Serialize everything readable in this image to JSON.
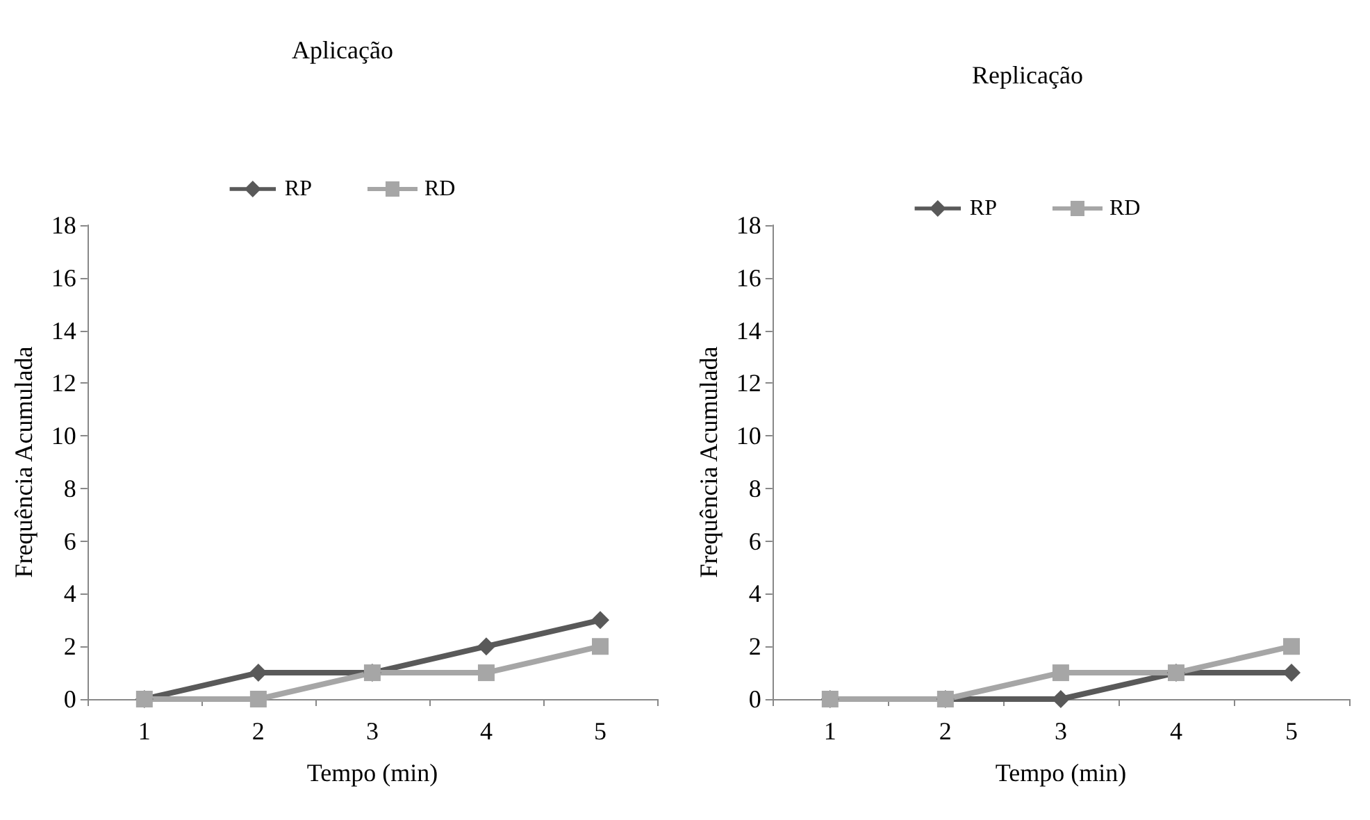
{
  "chart_data": [
    {
      "type": "line",
      "title": "Aplicação",
      "xlabel": "Tempo (min)",
      "ylabel": "Frequência Acumulada",
      "categories": [
        "1",
        "2",
        "3",
        "4",
        "5"
      ],
      "ylim": [
        0,
        18
      ],
      "yticks": [
        0,
        2,
        4,
        6,
        8,
        10,
        12,
        14,
        16,
        18
      ],
      "grid": false,
      "legend": "top",
      "line_style": "solid",
      "series": [
        {
          "name": "RP",
          "color": "#595959",
          "marker": "diamond",
          "values": [
            0,
            1,
            1,
            2,
            3
          ]
        },
        {
          "name": "RD",
          "color": "#a6a6a6",
          "marker": "square",
          "values": [
            0,
            0,
            1,
            1,
            2
          ]
        }
      ]
    },
    {
      "type": "line",
      "title": "Replicação",
      "xlabel": "Tempo (min)",
      "ylabel": "Frequência Acumulada",
      "categories": [
        "1",
        "2",
        "3",
        "4",
        "5"
      ],
      "ylim": [
        0,
        18
      ],
      "yticks": [
        0,
        2,
        4,
        6,
        8,
        10,
        12,
        14,
        16,
        18
      ],
      "grid": false,
      "legend": "top",
      "line_style": "solid",
      "series": [
        {
          "name": "RP",
          "color": "#595959",
          "marker": "diamond",
          "values": [
            0,
            0,
            0,
            1,
            1
          ]
        },
        {
          "name": "RD",
          "color": "#a6a6a6",
          "marker": "square",
          "values": [
            0,
            0,
            1,
            1,
            2
          ]
        }
      ]
    }
  ]
}
